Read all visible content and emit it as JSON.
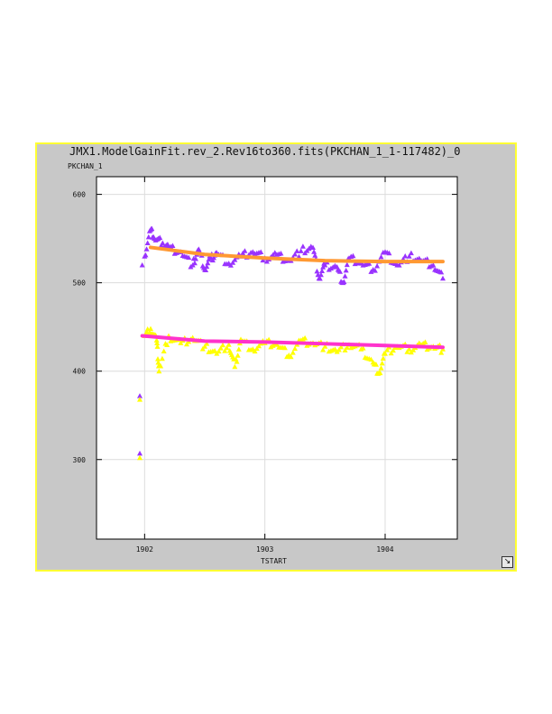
{
  "window": {
    "title": "JMX1.ModelGainFit.rev_2.Rev16to360.fits(PKCHAN_1_1-117482)_0",
    "ylabel": "PKCHAN_1",
    "xlabel": "TSTART",
    "resize_icon": "resize-corner-icon"
  },
  "colors": {
    "frame_border": "#ffff33",
    "frame_bg": "#c8c8c8",
    "plot_bg": "#ffffff",
    "grid": "#dcdcdc",
    "series_purple": "#9933ff",
    "series_yellow": "#ffff00",
    "fit_orange": "#ff9933",
    "fit_magenta": "#ff33cc"
  },
  "chart_data": {
    "type": "scatter",
    "xlim": [
      1901.6,
      1904.6
    ],
    "ylim": [
      210,
      620
    ],
    "xticks": [
      "1902",
      "1903",
      "1904"
    ],
    "yticks": [
      "300",
      "400",
      "500",
      "600"
    ],
    "grid": true,
    "series": [
      {
        "color": "purple",
        "marker": "triangle",
        "x": [
          1901.96,
          1901.96,
          1901.98,
          1902.0,
          1902.05,
          1902.08,
          1902.15,
          1902.2,
          1902.3,
          1902.4,
          1902.45,
          1902.5,
          1902.55,
          1902.6,
          1902.7,
          1902.8,
          1902.9,
          1903.0,
          1903.1,
          1903.2,
          1903.3,
          1903.4,
          1903.45,
          1903.5,
          1903.6,
          1903.65,
          1903.7,
          1903.8,
          1903.9,
          1904.0,
          1904.1,
          1904.2,
          1904.3,
          1904.4,
          1904.48
        ],
        "y": [
          372,
          307,
          520,
          530,
          560,
          550,
          545,
          540,
          535,
          520,
          538,
          515,
          528,
          534,
          522,
          530,
          535,
          528,
          532,
          525,
          536,
          540,
          505,
          520,
          518,
          500,
          528,
          522,
          515,
          535,
          520,
          530,
          525,
          520,
          505
        ]
      },
      {
        "color": "yellow",
        "marker": "triangle",
        "x": [
          1901.96,
          1901.96,
          1902.0,
          1902.05,
          1902.1,
          1902.12,
          1902.2,
          1902.3,
          1902.4,
          1902.5,
          1902.6,
          1902.7,
          1902.75,
          1902.8,
          1902.9,
          1903.0,
          1903.1,
          1903.2,
          1903.3,
          1903.4,
          1903.5,
          1903.6,
          1903.7,
          1903.8,
          1903.9,
          1903.95,
          1904.0,
          1904.1,
          1904.2,
          1904.3,
          1904.4,
          1904.48
        ],
        "y": [
          368,
          302,
          440,
          448,
          435,
          400,
          440,
          432,
          438,
          428,
          420,
          430,
          405,
          436,
          425,
          432,
          430,
          418,
          435,
          432,
          428,
          422,
          430,
          425,
          410,
          398,
          420,
          428,
          425,
          430,
          428,
          425
        ]
      },
      {
        "color": "orange",
        "marker": "line",
        "x": [
          1902.05,
          1902.5,
          1903.0,
          1903.5,
          1904.0,
          1904.48
        ],
        "y": [
          540,
          532,
          528,
          525,
          524,
          524
        ]
      },
      {
        "color": "magenta",
        "marker": "line",
        "x": [
          1901.98,
          1902.5,
          1903.0,
          1903.5,
          1904.0,
          1904.48
        ],
        "y": [
          440,
          434,
          433,
          431,
          429,
          427
        ]
      }
    ]
  }
}
